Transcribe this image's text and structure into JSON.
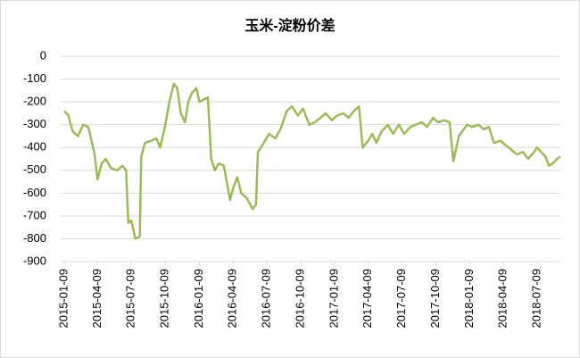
{
  "chart_data": {
    "type": "line",
    "title": "玉米-淀粉价差",
    "x": [
      "2015-01-09",
      "2015-01-20",
      "2015-02-01",
      "2015-02-15",
      "2015-03-01",
      "2015-03-15",
      "2015-04-01",
      "2015-04-09",
      "2015-04-20",
      "2015-05-01",
      "2015-05-15",
      "2015-06-01",
      "2015-06-15",
      "2015-06-25",
      "2015-07-01",
      "2015-07-09",
      "2015-07-20",
      "2015-08-01",
      "2015-08-05",
      "2015-08-15",
      "2015-09-01",
      "2015-09-15",
      "2015-09-25",
      "2015-10-09",
      "2015-10-20",
      "2015-11-01",
      "2015-11-10",
      "2015-11-20",
      "2015-12-01",
      "2015-12-10",
      "2015-12-20",
      "2016-01-01",
      "2016-01-09",
      "2016-01-20",
      "2016-02-01",
      "2016-02-10",
      "2016-02-20",
      "2016-03-01",
      "2016-03-15",
      "2016-04-01",
      "2016-04-09",
      "2016-04-20",
      "2016-05-01",
      "2016-05-15",
      "2016-06-01",
      "2016-06-10",
      "2016-06-15",
      "2016-07-01",
      "2016-07-15",
      "2016-08-01",
      "2016-08-15",
      "2016-09-01",
      "2016-09-15",
      "2016-10-01",
      "2016-10-15",
      "2016-11-01",
      "2016-11-15",
      "2016-12-01",
      "2016-12-15",
      "2017-01-01",
      "2017-01-15",
      "2017-02-01",
      "2017-02-15",
      "2017-03-01",
      "2017-03-15",
      "2017-03-25",
      "2017-04-09",
      "2017-04-20",
      "2017-05-01",
      "2017-05-15",
      "2017-06-01",
      "2017-06-15",
      "2017-07-01",
      "2017-07-15",
      "2017-08-01",
      "2017-08-15",
      "2017-09-01",
      "2017-09-15",
      "2017-10-01",
      "2017-10-15",
      "2017-11-01",
      "2017-11-15",
      "2017-11-25",
      "2017-12-10",
      "2018-01-01",
      "2018-01-15",
      "2018-02-01",
      "2018-02-15",
      "2018-03-01",
      "2018-03-15",
      "2018-04-01",
      "2018-04-15",
      "2018-05-01",
      "2018-05-15",
      "2018-06-01",
      "2018-06-15",
      "2018-07-01",
      "2018-07-09",
      "2018-07-20",
      "2018-08-01",
      "2018-08-10",
      "2018-08-20",
      "2018-09-01",
      "2018-09-10"
    ],
    "series": [
      {
        "color": "#9bbb59",
        "values": [
          -240,
          -260,
          -330,
          -350,
          -300,
          -310,
          -430,
          -540,
          -470,
          -450,
          -490,
          -500,
          -480,
          -500,
          -730,
          -720,
          -800,
          -790,
          -440,
          -380,
          -370,
          -360,
          -400,
          -300,
          -200,
          -120,
          -140,
          -250,
          -290,
          -200,
          -160,
          -140,
          -200,
          -190,
          -180,
          -450,
          -500,
          -470,
          -480,
          -630,
          -580,
          -530,
          -600,
          -620,
          -670,
          -650,
          -420,
          -380,
          -340,
          -360,
          -320,
          -240,
          -220,
          -260,
          -230,
          -300,
          -290,
          -270,
          -250,
          -280,
          -260,
          -250,
          -270,
          -240,
          -220,
          -400,
          -370,
          -340,
          -380,
          -330,
          -300,
          -340,
          -300,
          -340,
          -310,
          -300,
          -290,
          -310,
          -270,
          -290,
          -280,
          -290,
          -460,
          -350,
          -300,
          -310,
          -300,
          -320,
          -310,
          -380,
          -370,
          -390,
          -410,
          -430,
          -420,
          -450,
          -420,
          -400,
          -420,
          -440,
          -480,
          -470,
          -450,
          -440
        ]
      }
    ],
    "xlim": [
      "2015-01-09",
      "2018-09-10"
    ],
    "xticks": [
      "2015-01-09",
      "2015-04-09",
      "2015-07-09",
      "2015-10-09",
      "2016-01-09",
      "2016-04-09",
      "2016-07-09",
      "2016-10-09",
      "2017-01-09",
      "2017-04-09",
      "2017-07-09",
      "2017-10-09",
      "2018-01-09",
      "2018-04-09",
      "2018-07-09"
    ],
    "ylim": [
      -900,
      0
    ],
    "yticks": [
      0,
      -100,
      -200,
      -300,
      -400,
      -500,
      -600,
      -700,
      -800,
      -900
    ],
    "grid": true
  }
}
